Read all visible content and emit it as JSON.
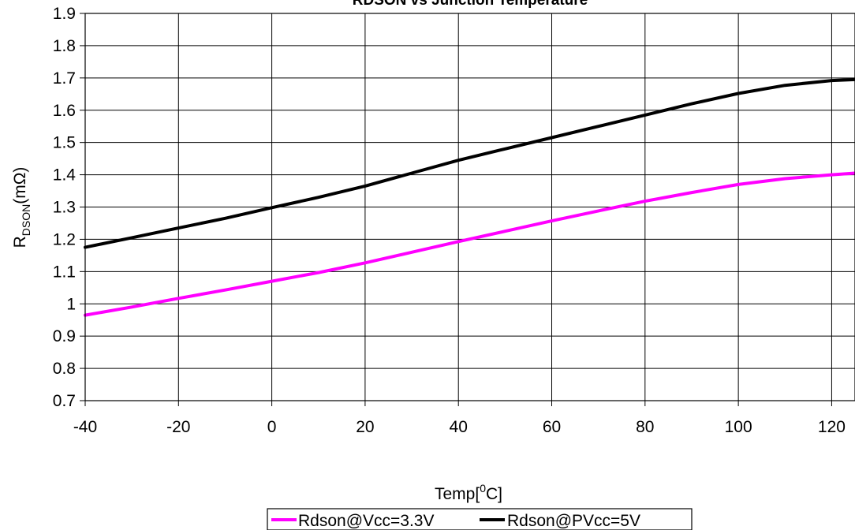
{
  "chart_data": {
    "type": "line",
    "title": "RDSON vs Junction Temperature",
    "xlabel": {
      "main": "Temp[",
      "sup": "0",
      "tail": "C]"
    },
    "ylabel": {
      "main": "R",
      "sub": "DSON",
      "tail": "(mΩ)"
    },
    "xlim": [
      -40,
      125
    ],
    "ylim": [
      0.7,
      1.9
    ],
    "x_ticks": [
      -40,
      -20,
      0,
      20,
      40,
      60,
      80,
      100,
      120
    ],
    "y_ticks": [
      0.7,
      0.8,
      0.9,
      1,
      1.1,
      1.2,
      1.3,
      1.4,
      1.5,
      1.6,
      1.7,
      1.8,
      1.9
    ],
    "grid": true,
    "legend_position": "bottom",
    "series": [
      {
        "name": "Rdson@Vcc=3.3V",
        "color": "#ff00ff",
        "x": [
          -40,
          -30,
          -20,
          -10,
          0,
          10,
          20,
          30,
          40,
          50,
          60,
          70,
          80,
          90,
          100,
          110,
          120,
          125
        ],
        "y": [
          0.965,
          0.99,
          1.017,
          1.043,
          1.07,
          1.097,
          1.127,
          1.16,
          1.193,
          1.225,
          1.257,
          1.288,
          1.318,
          1.345,
          1.37,
          1.388,
          1.4,
          1.405
        ]
      },
      {
        "name": "Rdson@PVcc=5V",
        "color": "#000000",
        "x": [
          -40,
          -30,
          -20,
          -10,
          0,
          10,
          20,
          30,
          40,
          50,
          60,
          70,
          80,
          90,
          100,
          110,
          120,
          125
        ],
        "y": [
          1.175,
          1.205,
          1.235,
          1.265,
          1.298,
          1.33,
          1.365,
          1.405,
          1.445,
          1.48,
          1.515,
          1.55,
          1.585,
          1.62,
          1.652,
          1.677,
          1.692,
          1.695
        ]
      }
    ]
  }
}
